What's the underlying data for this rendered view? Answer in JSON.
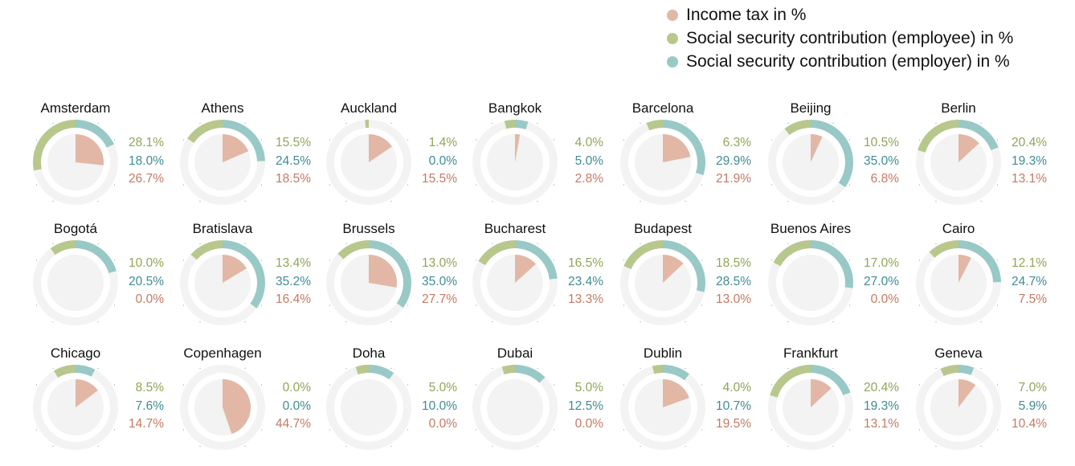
{
  "colors": {
    "income_tax": "#e2b7a6",
    "employee": "#b8c78c",
    "employer": "#98c9c6",
    "track": "#f2f3f2",
    "text_employee": "#8fa657",
    "text_employer": "#3f8c96",
    "text_tax": "#c57a63"
  },
  "legend": [
    {
      "label": "Income tax in %",
      "color": "#e2b7a6"
    },
    {
      "label": "Social security contribution (employee) in %",
      "color": "#b8c78c"
    },
    {
      "label": "Social security contribution (employer) in %",
      "color": "#98c9c6"
    }
  ],
  "chart_data": {
    "type": "pie",
    "layout": "small-multiples donut grid, 3 rows x 7 columns",
    "series_names": [
      "Social security contribution (employee) in %",
      "Social security contribution (employer) in %",
      "Income tax in %"
    ],
    "cities": [
      {
        "name": "Amsterdam",
        "employee": 28.1,
        "employer": 18.0,
        "income_tax": 26.7,
        "labels": [
          "28.1%",
          "18.0%",
          "26.7%"
        ]
      },
      {
        "name": "Athens",
        "employee": 15.5,
        "employer": 24.5,
        "income_tax": 18.5,
        "labels": [
          "15.5%",
          "24.5%",
          "18.5%"
        ]
      },
      {
        "name": "Auckland",
        "employee": 1.4,
        "employer": 0.0,
        "income_tax": 15.5,
        "labels": [
          "1.4%",
          "0.0%",
          "15.5%"
        ]
      },
      {
        "name": "Bangkok",
        "employee": 4.0,
        "employer": 5.0,
        "income_tax": 2.8,
        "labels": [
          "4.0%",
          "5.0%",
          "2.8%"
        ]
      },
      {
        "name": "Barcelona",
        "employee": 6.3,
        "employer": 29.9,
        "income_tax": 21.9,
        "labels": [
          "6.3%",
          "29.9%",
          "21.9%"
        ]
      },
      {
        "name": "Beijing",
        "employee": 10.5,
        "employer": 35.0,
        "income_tax": 6.8,
        "labels": [
          "10.5%",
          "35.0%",
          "6.8%"
        ]
      },
      {
        "name": "Berlin",
        "employee": 20.4,
        "employer": 19.3,
        "income_tax": 13.1,
        "labels": [
          "20.4%",
          "19.3%",
          "13.1%"
        ]
      },
      {
        "name": "Bogotá",
        "employee": 10.0,
        "employer": 20.5,
        "income_tax": 0.0,
        "labels": [
          "10.0%",
          "20.5%",
          "0.0%"
        ]
      },
      {
        "name": "Bratislava",
        "employee": 13.4,
        "employer": 35.2,
        "income_tax": 16.4,
        "labels": [
          "13.4%",
          "35.2%",
          "16.4%"
        ]
      },
      {
        "name": "Brussels",
        "employee": 13.0,
        "employer": 35.0,
        "income_tax": 27.7,
        "labels": [
          "13.0%",
          "35.0%",
          "27.7%"
        ]
      },
      {
        "name": "Bucharest",
        "employee": 16.5,
        "employer": 23.4,
        "income_tax": 13.3,
        "labels": [
          "16.5%",
          "23.4%",
          "13.3%"
        ]
      },
      {
        "name": "Budapest",
        "employee": 18.5,
        "employer": 28.5,
        "income_tax": 13.0,
        "labels": [
          "18.5%",
          "28.5%",
          "13.0%"
        ]
      },
      {
        "name": "Buenos Aires",
        "employee": 17.0,
        "employer": 27.0,
        "income_tax": 0.0,
        "labels": [
          "17.0%",
          "27.0%",
          "0.0%"
        ]
      },
      {
        "name": "Cairo",
        "employee": 12.1,
        "employer": 24.7,
        "income_tax": 7.5,
        "labels": [
          "12.1%",
          "24.7%",
          "7.5%"
        ]
      },
      {
        "name": "Chicago",
        "employee": 8.5,
        "employer": 7.6,
        "income_tax": 14.7,
        "labels": [
          "8.5%",
          "7.6%",
          "14.7%"
        ]
      },
      {
        "name": "Copenhagen",
        "employee": 0.0,
        "employer": 0.0,
        "income_tax": 44.7,
        "labels": [
          "0.0%",
          "0.0%",
          "44.7%"
        ]
      },
      {
        "name": "Doha",
        "employee": 5.0,
        "employer": 10.0,
        "income_tax": 0.0,
        "labels": [
          "5.0%",
          "10.0%",
          "0.0%"
        ]
      },
      {
        "name": "Dubai",
        "employee": 5.0,
        "employer": 12.5,
        "income_tax": 0.0,
        "labels": [
          "5.0%",
          "12.5%",
          "0.0%"
        ]
      },
      {
        "name": "Dublin",
        "employee": 4.0,
        "employer": 10.7,
        "income_tax": 19.5,
        "labels": [
          "4.0%",
          "10.7%",
          "19.5%"
        ]
      },
      {
        "name": "Frankfurt",
        "employee": 20.4,
        "employer": 19.3,
        "income_tax": 13.1,
        "labels": [
          "20.4%",
          "19.3%",
          "13.1%"
        ]
      },
      {
        "name": "Geneva",
        "employee": 7.0,
        "employer": 5.9,
        "income_tax": 10.4,
        "labels": [
          "7.0%",
          "5.9%",
          "10.4%"
        ]
      }
    ]
  }
}
